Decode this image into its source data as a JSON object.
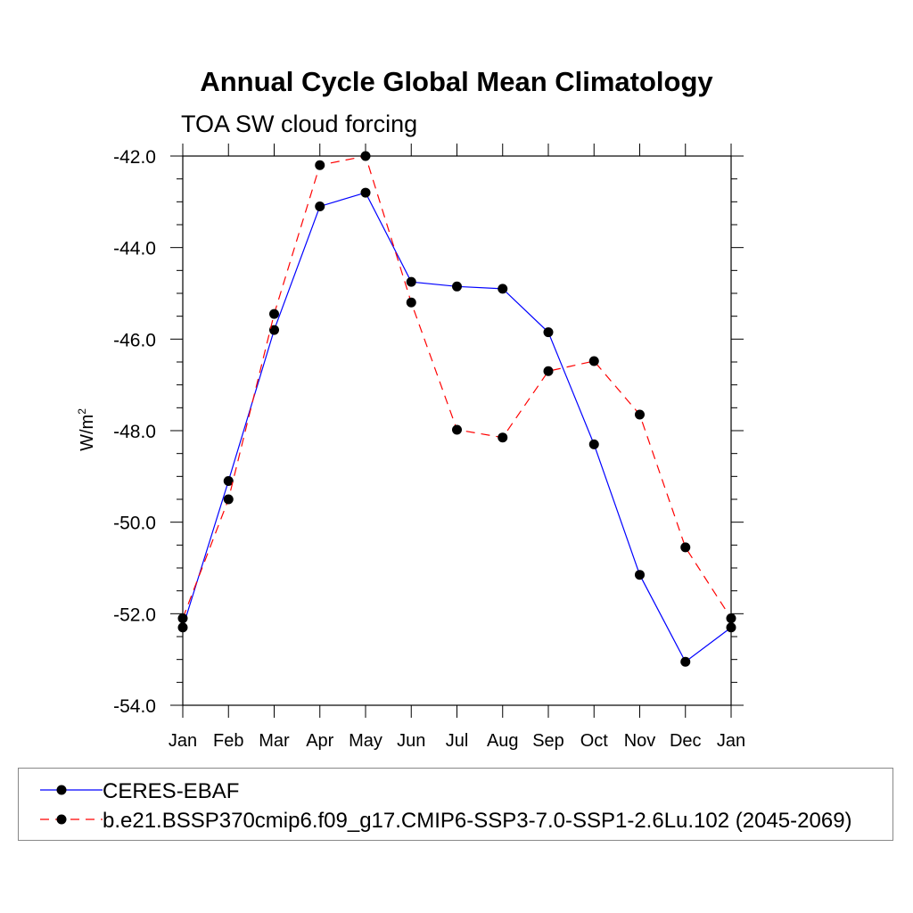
{
  "title": "Annual Cycle Global Mean Climatology",
  "subtitle": "TOA SW cloud forcing",
  "chart_data": {
    "type": "line",
    "ylabel": "W/m",
    "ylabel_sup": "2",
    "xlabel": "",
    "categories": [
      "Jan",
      "Feb",
      "Mar",
      "Apr",
      "May",
      "Jun",
      "Jul",
      "Aug",
      "Sep",
      "Oct",
      "Nov",
      "Dec",
      "Jan"
    ],
    "yticks": [
      -42.0,
      -44.0,
      -46.0,
      -48.0,
      -50.0,
      -52.0,
      -54.0
    ],
    "ytick_labels": [
      "-42.0",
      "-44.0",
      "-46.0",
      "-48.0",
      "-50.0",
      "-52.0",
      "-54.0"
    ],
    "ylim": [
      -54.0,
      -42.0
    ],
    "grid": false,
    "legend_position": "bottom",
    "series": [
      {
        "name": "CERES-EBAF",
        "color": "#0000ff",
        "dash": "solid",
        "marker": "filled-circle",
        "values": [
          -52.3,
          -49.1,
          -45.8,
          -43.1,
          -42.8,
          -44.75,
          -44.85,
          -44.9,
          -45.85,
          -48.3,
          -51.15,
          -53.05,
          -52.3
        ]
      },
      {
        "name": "b.e21.BSSP370cmip6.f09_g17.CMIP6-SSP3-7.0-SSP1-2.6Lu.102 (2045-2069)",
        "color": "#ff0000",
        "dash": "dashed",
        "marker": "filled-circle",
        "values": [
          -52.1,
          -49.5,
          -45.45,
          -42.2,
          -42.0,
          -45.2,
          -47.98,
          -48.15,
          -46.7,
          -46.48,
          -47.65,
          -50.55,
          -52.1
        ]
      }
    ]
  }
}
